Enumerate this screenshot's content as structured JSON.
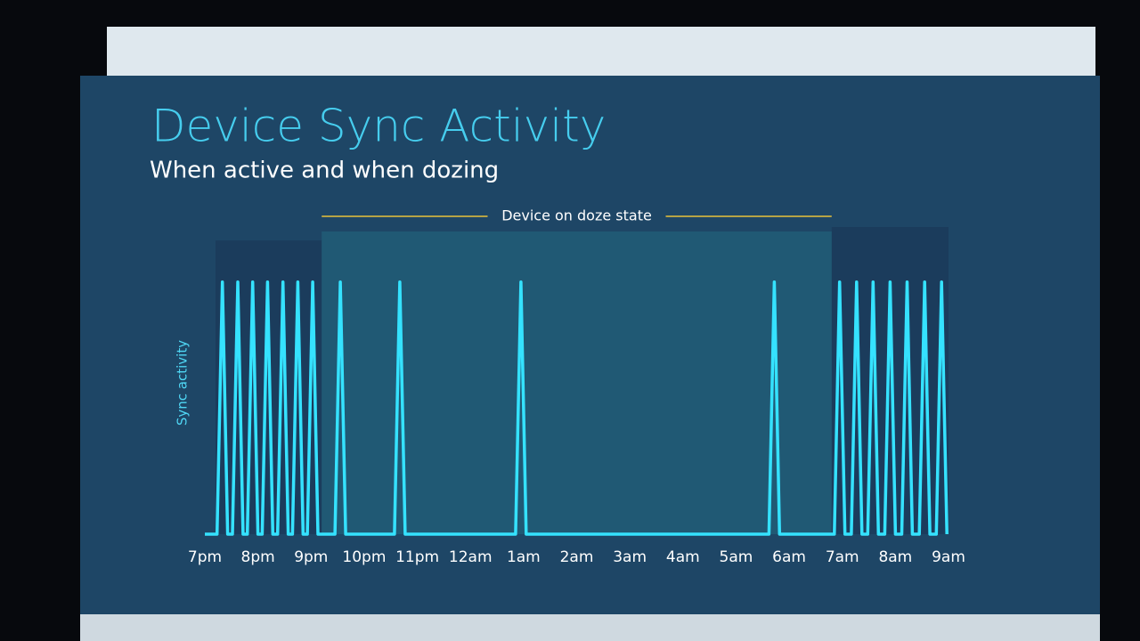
{
  "chart_data": {
    "type": "line",
    "title": "Device Sync Activity",
    "subtitle": "When active and when dozing",
    "y_label": "Sync activity",
    "annotation": {
      "text": "Device on doze state",
      "start": 2.2,
      "end": 11.8
    },
    "color": "#35e2ff",
    "x": [
      0,
      0.23,
      0.33,
      0.43,
      0.52,
      0.62,
      0.72,
      0.8,
      0.9,
      1.0,
      1.08,
      1.18,
      1.28,
      1.37,
      1.47,
      1.57,
      1.65,
      1.75,
      1.85,
      1.93,
      2.03,
      2.13,
      2.45,
      2.55,
      2.65,
      3.57,
      3.67,
      3.77,
      5.85,
      5.95,
      6.05,
      10.62,
      10.72,
      10.82,
      11.85,
      11.95,
      12.05,
      12.17,
      12.27,
      12.37,
      12.48,
      12.58,
      12.68,
      12.8,
      12.9,
      13.0,
      13.12,
      13.22,
      13.32,
      13.45,
      13.55,
      13.65,
      13.77,
      13.87,
      13.97
    ],
    "values": [
      0,
      0,
      1,
      0,
      0,
      1,
      0,
      0,
      1,
      0,
      0,
      1,
      0,
      0,
      1,
      0,
      0,
      1,
      0,
      0,
      1,
      0,
      0,
      1,
      0,
      0,
      1,
      0,
      0,
      1,
      0,
      0,
      1,
      0,
      0,
      1,
      0,
      0,
      1,
      0,
      0,
      1,
      0,
      0,
      1,
      0,
      0,
      1,
      0,
      0,
      1,
      0,
      0,
      1,
      0
    ],
    "xlim": [
      0,
      14
    ],
    "ylim": [
      0,
      1.2
    ],
    "xticks": [
      {
        "value": 0,
        "label": "7pm"
      },
      {
        "value": 1,
        "label": "8pm"
      },
      {
        "value": 2,
        "label": "9pm"
      },
      {
        "value": 3,
        "label": "10pm"
      },
      {
        "value": 4,
        "label": "11pm"
      },
      {
        "value": 5,
        "label": "12am"
      },
      {
        "value": 6,
        "label": "1am"
      },
      {
        "value": 7,
        "label": "2am"
      },
      {
        "value": 8,
        "label": "3am"
      },
      {
        "value": 9,
        "label": "4am"
      },
      {
        "value": 10,
        "label": "5am"
      },
      {
        "value": 11,
        "label": "6am"
      },
      {
        "value": 12,
        "label": "7am"
      },
      {
        "value": 13,
        "label": "8am"
      },
      {
        "value": 14,
        "label": "9am"
      }
    ]
  }
}
